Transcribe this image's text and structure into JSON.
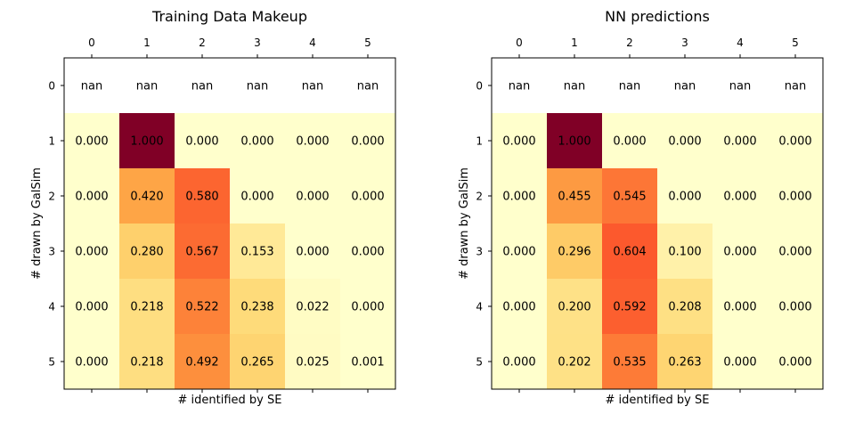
{
  "chart_data": [
    {
      "type": "heatmap",
      "title": "Training Data Makeup",
      "xlabel": "# identified by SE",
      "ylabel": "# drawn by GalSim",
      "x_ticks": [
        "0",
        "1",
        "2",
        "3",
        "4",
        "5"
      ],
      "y_ticks": [
        "0",
        "1",
        "2",
        "3",
        "4",
        "5"
      ],
      "colormap": "YlOrRd",
      "color_range": [
        0,
        1
      ],
      "nan_color": "#ffffff",
      "values": [
        [
          null,
          null,
          null,
          null,
          null,
          null
        ],
        [
          0.0,
          1.0,
          0.0,
          0.0,
          0.0,
          0.0
        ],
        [
          0.0,
          0.42,
          0.58,
          0.0,
          0.0,
          0.0
        ],
        [
          0.0,
          0.28,
          0.567,
          0.153,
          0.0,
          0.0
        ],
        [
          0.0,
          0.218,
          0.522,
          0.238,
          0.022,
          0.0
        ],
        [
          0.0,
          0.218,
          0.492,
          0.265,
          0.025,
          0.001
        ]
      ],
      "labels": [
        [
          "nan",
          "nan",
          "nan",
          "nan",
          "nan",
          "nan"
        ],
        [
          "0.000",
          "1.000",
          "0.000",
          "0.000",
          "0.000",
          "0.000"
        ],
        [
          "0.000",
          "0.420",
          "0.580",
          "0.000",
          "0.000",
          "0.000"
        ],
        [
          "0.000",
          "0.280",
          "0.567",
          "0.153",
          "0.000",
          "0.000"
        ],
        [
          "0.000",
          "0.218",
          "0.522",
          "0.238",
          "0.022",
          "0.000"
        ],
        [
          "0.000",
          "0.218",
          "0.492",
          "0.265",
          "0.025",
          "0.001"
        ]
      ]
    },
    {
      "type": "heatmap",
      "title": "NN predictions",
      "xlabel": "# identified by SE",
      "ylabel": "# drawn by GalSim",
      "x_ticks": [
        "0",
        "1",
        "2",
        "3",
        "4",
        "5"
      ],
      "y_ticks": [
        "0",
        "1",
        "2",
        "3",
        "4",
        "5"
      ],
      "colormap": "YlOrRd",
      "color_range": [
        0,
        1
      ],
      "nan_color": "#ffffff",
      "values": [
        [
          null,
          null,
          null,
          null,
          null,
          null
        ],
        [
          0.0,
          1.0,
          0.0,
          0.0,
          0.0,
          0.0
        ],
        [
          0.0,
          0.455,
          0.545,
          0.0,
          0.0,
          0.0
        ],
        [
          0.0,
          0.296,
          0.604,
          0.1,
          0.0,
          0.0
        ],
        [
          0.0,
          0.2,
          0.592,
          0.208,
          0.0,
          0.0
        ],
        [
          0.0,
          0.202,
          0.535,
          0.263,
          0.0,
          0.0
        ]
      ],
      "labels": [
        [
          "nan",
          "nan",
          "nan",
          "nan",
          "nan",
          "nan"
        ],
        [
          "0.000",
          "1.000",
          "0.000",
          "0.000",
          "0.000",
          "0.000"
        ],
        [
          "0.000",
          "0.455",
          "0.545",
          "0.000",
          "0.000",
          "0.000"
        ],
        [
          "0.000",
          "0.296",
          "0.604",
          "0.100",
          "0.000",
          "0.000"
        ],
        [
          "0.000",
          "0.200",
          "0.592",
          "0.208",
          "0.000",
          "0.000"
        ],
        [
          "0.000",
          "0.202",
          "0.535",
          "0.263",
          "0.000",
          "0.000"
        ]
      ]
    }
  ]
}
